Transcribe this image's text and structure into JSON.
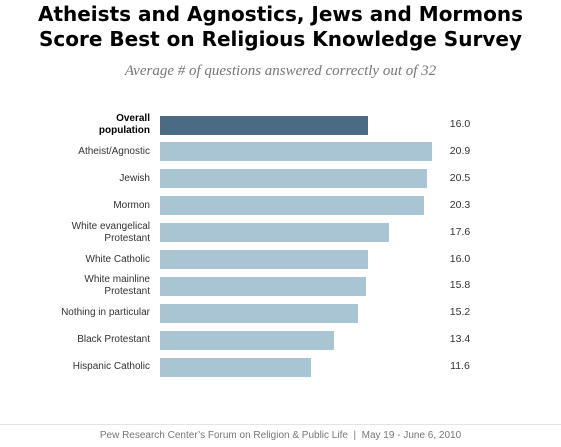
{
  "chart_data": {
    "type": "bar",
    "orientation": "horizontal",
    "title": "Atheists and Agnostics, Jews and Mormons\nScore Best on Religious Knowledge Survey",
    "subtitle": "Average # of questions answered correctly out of 32",
    "categories": [
      "Overall\npopulation",
      "Atheist/Agnostic",
      "Jewish",
      "Mormon",
      "White evangelical\nProtestant",
      "White Catholic",
      "White mainline\nProtestant",
      "Nothing in particular",
      "Black Protestant",
      "Hispanic Catholic"
    ],
    "values": [
      16.0,
      20.9,
      20.5,
      20.3,
      17.6,
      16.0,
      15.8,
      15.2,
      13.4,
      11.6
    ],
    "value_labels": [
      "16.0",
      "20.9",
      "20.5",
      "20.3",
      "17.6",
      "16.0",
      "15.8",
      "15.2",
      "13.4",
      "11.6"
    ],
    "colors": [
      "#4b6b84",
      "#a9c4d3",
      "#a9c4d3",
      "#a9c4d3",
      "#a9c4d3",
      "#a9c4d3",
      "#a9c4d3",
      "#a9c4d3",
      "#a9c4d3",
      "#a9c4d3"
    ],
    "label_weights": [
      "bold",
      "normal",
      "normal",
      "normal",
      "normal",
      "normal",
      "normal",
      "normal",
      "normal",
      "normal"
    ],
    "source": "Pew Research Center’s Forum on Religion & Public Life  |  May 19 - June 6, 2010"
  }
}
